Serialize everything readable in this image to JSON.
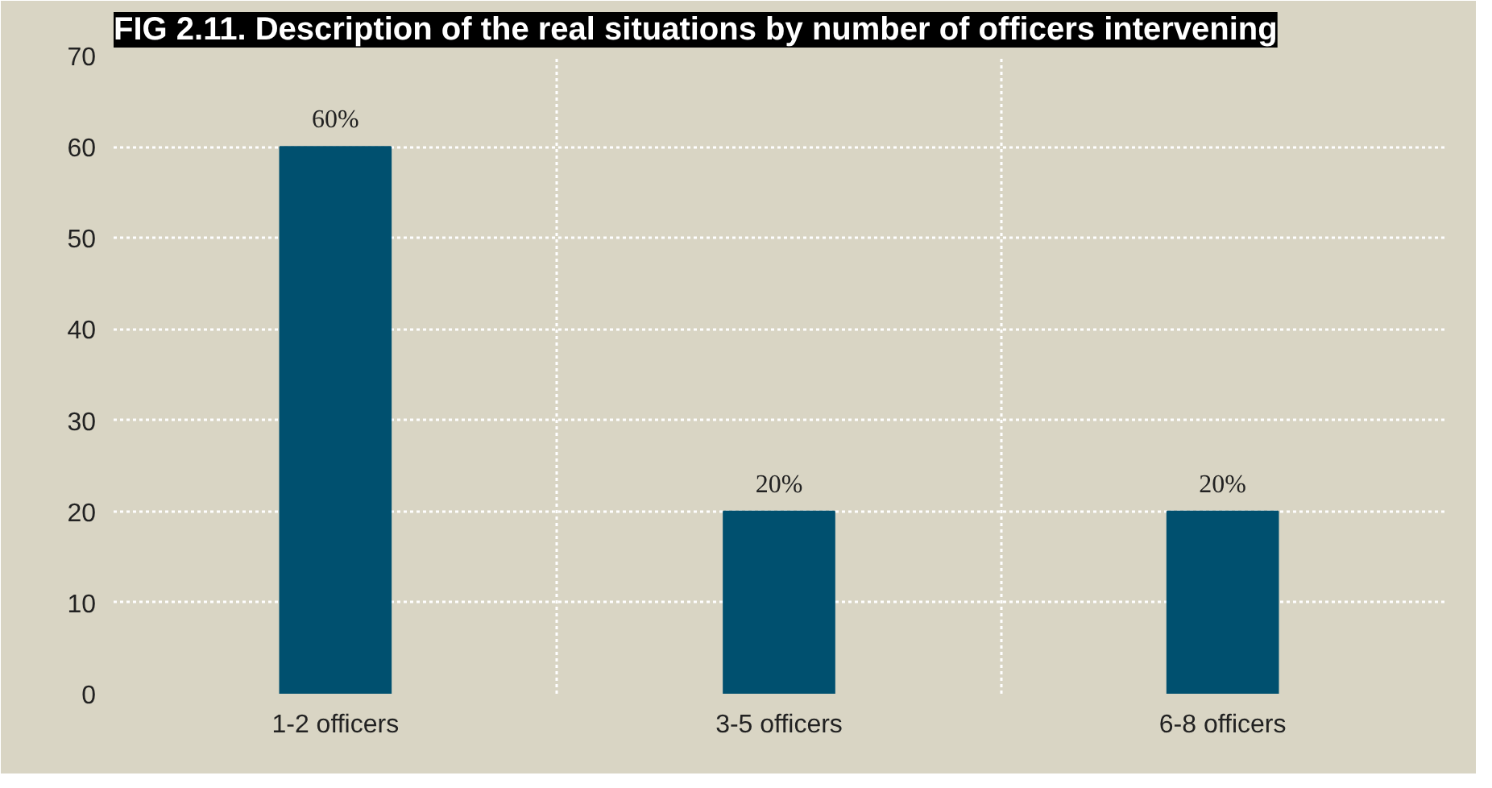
{
  "chart_data": {
    "type": "bar",
    "title": "FIG 2.11. Description of the real situations by number of officers intervening",
    "categories": [
      "1-2 officers",
      "3-5 officers",
      "6-8 officers"
    ],
    "values": [
      60,
      20,
      20
    ],
    "value_labels": [
      "60%",
      "20%",
      "20%"
    ],
    "color": "#00506f",
    "ylim": [
      0,
      70
    ],
    "yticks": [
      0,
      10,
      20,
      30,
      40,
      50,
      60,
      70
    ],
    "grid": true
  }
}
